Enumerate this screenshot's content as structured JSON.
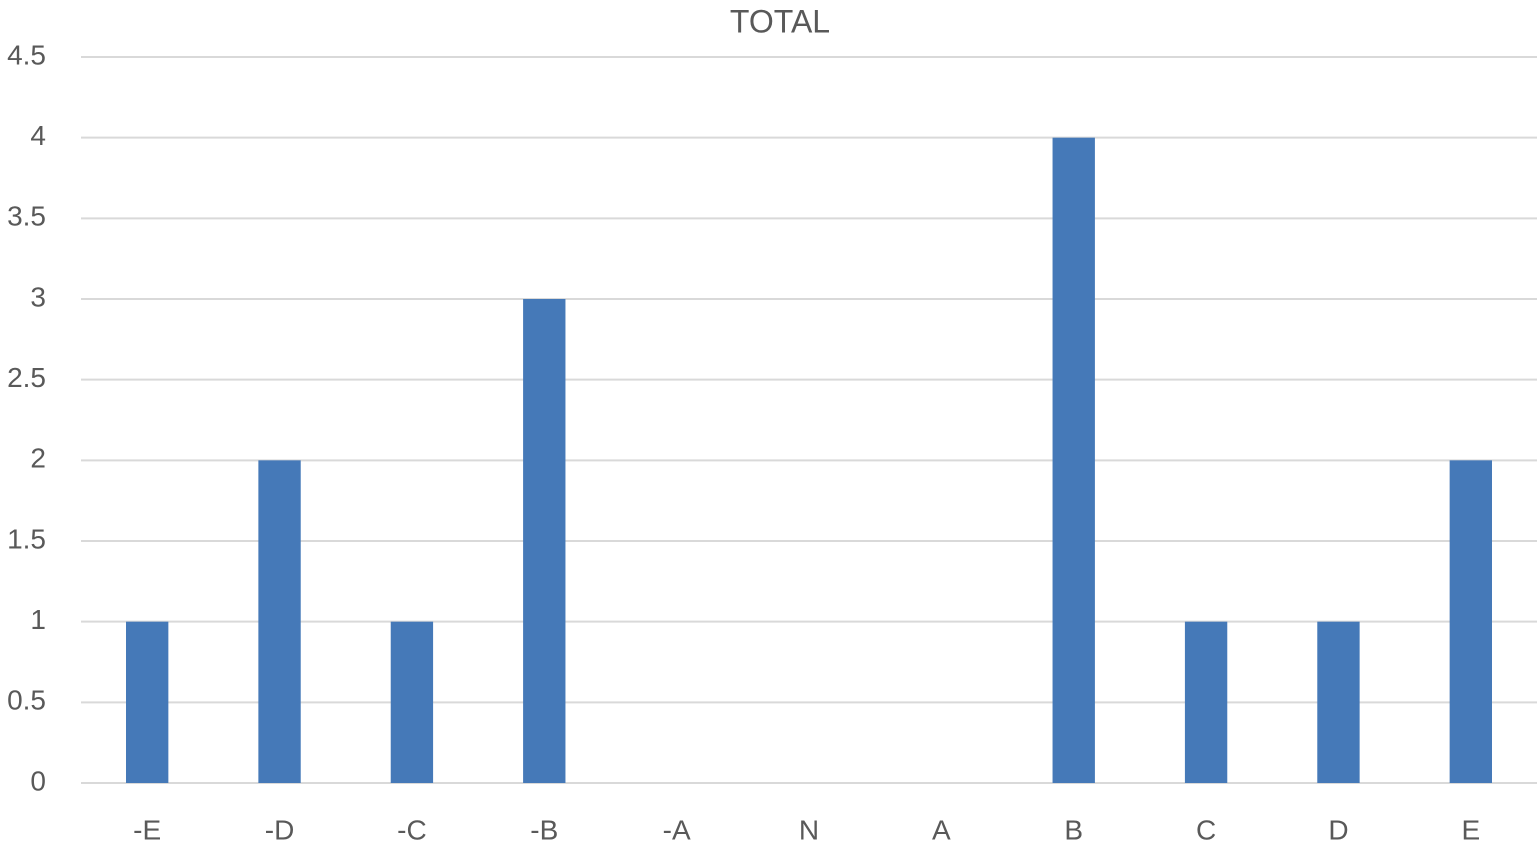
{
  "chart_data": {
    "type": "bar",
    "title": "TOTAL",
    "categories": [
      "-E",
      "-D",
      "-C",
      "-B",
      "-A",
      "N",
      "A",
      "B",
      "C",
      "D",
      "E"
    ],
    "values": [
      1,
      2,
      1,
      3,
      0,
      0,
      0,
      4,
      1,
      1,
      2
    ],
    "color": "#4579b8",
    "ylim": [
      0,
      4.5
    ],
    "yticks": [
      0,
      0.5,
      1,
      1.5,
      2,
      2.5,
      3,
      3.5,
      4,
      4.5
    ],
    "grid": true
  }
}
